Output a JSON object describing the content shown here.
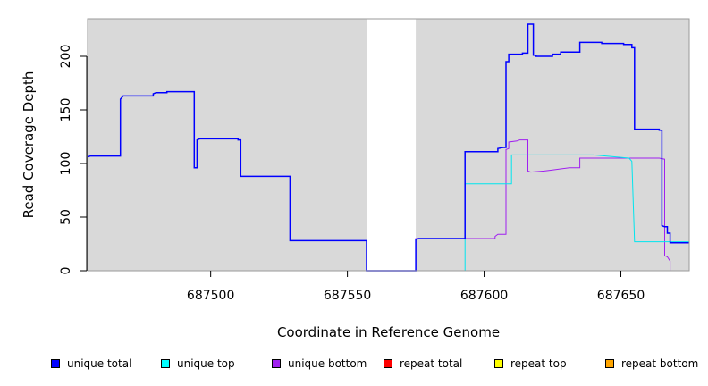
{
  "chart_data": {
    "type": "line",
    "title": "",
    "xlabel": "Coordinate in Reference Genome",
    "ylabel": "Read Coverage Depth",
    "xlim": [
      687455,
      687675
    ],
    "ylim": [
      0,
      235
    ],
    "x_ticks": [
      687500,
      687550,
      687600,
      687650
    ],
    "y_ticks": [
      0,
      50,
      100,
      150,
      200
    ],
    "grid": false,
    "background": "#d9d9d9",
    "gap_region": [
      687557,
      687575
    ],
    "legend_position": "bottom",
    "series": [
      {
        "name": "unique total",
        "color": "#0000ff",
        "points": [
          [
            687455,
            106
          ],
          [
            687456,
            107
          ],
          [
            687467,
            107
          ],
          [
            687467,
            160
          ],
          [
            687468,
            163
          ],
          [
            687479,
            163
          ],
          [
            687479,
            165
          ],
          [
            687480,
            166
          ],
          [
            687484,
            166
          ],
          [
            687484,
            167
          ],
          [
            687494,
            167
          ],
          [
            687494,
            96
          ],
          [
            687495,
            96
          ],
          [
            687495,
            122
          ],
          [
            687496,
            123
          ],
          [
            687510,
            123
          ],
          [
            687510,
            122
          ],
          [
            687511,
            122
          ],
          [
            687511,
            88
          ],
          [
            687529,
            88
          ],
          [
            687529,
            28
          ],
          [
            687557,
            28
          ],
          [
            687557,
            0
          ],
          [
            687575,
            0
          ],
          [
            687575,
            29
          ],
          [
            687576,
            30
          ],
          [
            687593,
            30
          ],
          [
            687593,
            111
          ],
          [
            687605,
            111
          ],
          [
            687605,
            114
          ],
          [
            687607,
            115
          ],
          [
            687608,
            115
          ],
          [
            687608,
            195
          ],
          [
            687609,
            195
          ],
          [
            687609,
            202
          ],
          [
            687614,
            202
          ],
          [
            687614,
            203
          ],
          [
            687616,
            203
          ],
          [
            687616,
            230
          ],
          [
            687618,
            230
          ],
          [
            687618,
            201
          ],
          [
            687619,
            201
          ],
          [
            687619,
            200
          ],
          [
            687625,
            200
          ],
          [
            687625,
            202
          ],
          [
            687628,
            202
          ],
          [
            687628,
            204
          ],
          [
            687635,
            204
          ],
          [
            687635,
            213
          ],
          [
            687643,
            213
          ],
          [
            687643,
            212
          ],
          [
            687651,
            212
          ],
          [
            687651,
            211
          ],
          [
            687654,
            211
          ],
          [
            687654,
            208
          ],
          [
            687655,
            208
          ],
          [
            687655,
            132
          ],
          [
            687664,
            132
          ],
          [
            687664,
            131
          ],
          [
            687665,
            131
          ],
          [
            687665,
            42
          ],
          [
            687666,
            41
          ],
          [
            687667,
            41
          ],
          [
            687667,
            35
          ],
          [
            687668,
            35
          ],
          [
            687668,
            26
          ],
          [
            687675,
            26
          ]
        ]
      },
      {
        "name": "unique top",
        "color": "#00e5ee",
        "points": [
          [
            687455,
            0
          ],
          [
            687593,
            0
          ],
          [
            687593,
            81
          ],
          [
            687610,
            81
          ],
          [
            687610,
            108
          ],
          [
            687640,
            108
          ],
          [
            687653,
            105
          ],
          [
            687654,
            102
          ],
          [
            687655,
            27
          ],
          [
            687675,
            27
          ]
        ]
      },
      {
        "name": "unique bottom",
        "color": "#a020f0",
        "points": [
          [
            687455,
            0
          ],
          [
            687575,
            0
          ],
          [
            687575,
            30
          ],
          [
            687604,
            30
          ],
          [
            687604,
            32
          ],
          [
            687605,
            34
          ],
          [
            687608,
            34
          ],
          [
            687608,
            113
          ],
          [
            687609,
            114
          ],
          [
            687609,
            120
          ],
          [
            687612,
            121
          ],
          [
            687613,
            122
          ],
          [
            687616,
            122
          ],
          [
            687616,
            93
          ],
          [
            687617,
            92
          ],
          [
            687622,
            93
          ],
          [
            687625,
            94
          ],
          [
            687628,
            95
          ],
          [
            687631,
            96
          ],
          [
            687635,
            96
          ],
          [
            687635,
            105
          ],
          [
            687664,
            105
          ],
          [
            687666,
            104
          ],
          [
            687666,
            14
          ],
          [
            687667,
            13
          ],
          [
            687668,
            9
          ],
          [
            687668,
            0
          ],
          [
            687675,
            0
          ]
        ]
      },
      {
        "name": "repeat total",
        "color": "#ff0000",
        "points": [
          [
            687455,
            0
          ],
          [
            687675,
            0
          ]
        ]
      },
      {
        "name": "repeat top",
        "color": "#ffff00",
        "points": [
          [
            687455,
            0
          ],
          [
            687675,
            0
          ]
        ]
      },
      {
        "name": "repeat bottom",
        "color": "#ffa500",
        "points": [
          [
            687455,
            0
          ],
          [
            687675,
            0
          ]
        ]
      }
    ]
  },
  "legend": {
    "items": [
      {
        "label": "unique total",
        "color": "#0000ff"
      },
      {
        "label": "unique top",
        "color": "#00ffff"
      },
      {
        "label": "unique bottom",
        "color": "#a020f0"
      },
      {
        "label": "repeat total",
        "color": "#ff0000"
      },
      {
        "label": "repeat top",
        "color": "#ffff00"
      },
      {
        "label": "repeat bottom",
        "color": "#ffa500"
      }
    ]
  }
}
